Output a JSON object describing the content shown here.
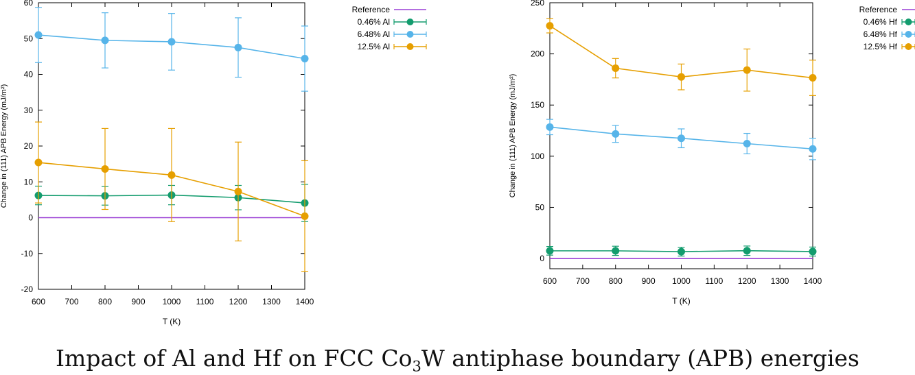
{
  "caption": {
    "text_before": "Impact of Al and Hf on FCC Co",
    "subscript": "3",
    "text_after": "W antiphase boundary (APB) energies"
  },
  "colors": {
    "reference": "#9a3fd5",
    "low": "#139c6e",
    "mid": "#56b4e9",
    "high": "#e69f00",
    "axis": "#000000"
  },
  "chart_data": [
    {
      "type": "line",
      "title": "",
      "xlabel": "T (K)",
      "ylabel": "Change in (111) APB Energy (mJ/m²)",
      "xlim": [
        600,
        1400
      ],
      "ylim": [
        -20,
        60
      ],
      "xticks": [
        600,
        700,
        800,
        900,
        1000,
        1100,
        1200,
        1300,
        1400
      ],
      "yticks": [
        -20,
        -10,
        0,
        10,
        20,
        30,
        40,
        50,
        60
      ],
      "grid": false,
      "legend_position": "outside-top-right",
      "x": [
        600,
        800,
        1000,
        1200,
        1400
      ],
      "series": [
        {
          "name": "Reference",
          "role": "reference",
          "values": [
            0,
            0,
            0,
            0,
            0
          ]
        },
        {
          "name": "0.46% Al",
          "role": "low",
          "values": [
            6.2,
            6.1,
            6.3,
            5.6,
            4.1
          ],
          "errors": [
            2.6,
            2.6,
            2.7,
            3.4,
            5.2
          ]
        },
        {
          "name": "6.48% Al",
          "role": "mid",
          "values": [
            51,
            49.5,
            49.1,
            47.5,
            44.4
          ],
          "errors": [
            7.7,
            7.7,
            7.9,
            8.3,
            9.1
          ]
        },
        {
          "name": "12.5% Al",
          "role": "high",
          "values": [
            15.4,
            13.6,
            11.9,
            7.3,
            0.4
          ],
          "errors": [
            11.3,
            11.3,
            13,
            13.8,
            15.5
          ]
        }
      ]
    },
    {
      "type": "line",
      "title": "",
      "xlabel": "T (K)",
      "ylabel": "Change in (111) APB Energy (mJ/m²)",
      "xlim": [
        600,
        1400
      ],
      "ylim": [
        -10,
        250
      ],
      "xticks": [
        600,
        700,
        800,
        900,
        1000,
        1100,
        1200,
        1300,
        1400
      ],
      "yticks": [
        0,
        50,
        100,
        150,
        200,
        250
      ],
      "grid": false,
      "legend_position": "outside-top-right",
      "x": [
        600,
        800,
        1000,
        1200,
        1400
      ],
      "series": [
        {
          "name": "Reference",
          "role": "reference",
          "values": [
            0,
            0,
            0,
            0,
            0
          ]
        },
        {
          "name": "0.46% Hf",
          "role": "low",
          "values": [
            7.5,
            7.5,
            6.7,
            7.6,
            6.8
          ],
          "errors": [
            4.2,
            4.5,
            4.3,
            4.6,
            4.4
          ]
        },
        {
          "name": "6.48% Hf",
          "role": "mid",
          "values": [
            128.5,
            121.8,
            117.5,
            112.3,
            107.1
          ],
          "errors": [
            7.5,
            8.3,
            9.2,
            10,
            10.5
          ]
        },
        {
          "name": "12.5% Hf",
          "role": "high",
          "values": [
            227.5,
            186,
            177.5,
            184.2,
            176.6
          ],
          "errors": [
            7,
            9.5,
            12.6,
            20.6,
            17.3
          ]
        }
      ]
    }
  ]
}
